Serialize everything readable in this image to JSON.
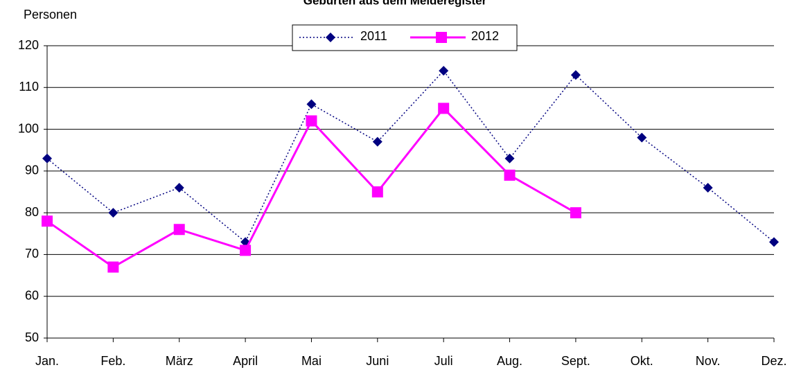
{
  "chart_data": {
    "type": "line",
    "title": "Geburten aus dem Melderegister",
    "y_label": "Personen",
    "categories": [
      "Jan.",
      "Feb.",
      "März",
      "April",
      "Mai",
      "Juni",
      "Juli",
      "Aug.",
      "Sept.",
      "Okt.",
      "Nov.",
      "Dez."
    ],
    "series": [
      {
        "name": "2011",
        "color": "#000080",
        "marker": "diamond",
        "dash": "dotted",
        "values": [
          93,
          80,
          86,
          73,
          106,
          97,
          114,
          93,
          113,
          98,
          86,
          73
        ]
      },
      {
        "name": "2012",
        "color": "#ff00ff",
        "marker": "square",
        "dash": "solid",
        "values": [
          78,
          67,
          76,
          71,
          102,
          85,
          105,
          89,
          80,
          null,
          null,
          null
        ]
      }
    ],
    "ylim": [
      50,
      120
    ],
    "yticks": [
      50,
      60,
      70,
      80,
      90,
      100,
      110,
      120
    ],
    "grid": true,
    "legend": "top"
  }
}
